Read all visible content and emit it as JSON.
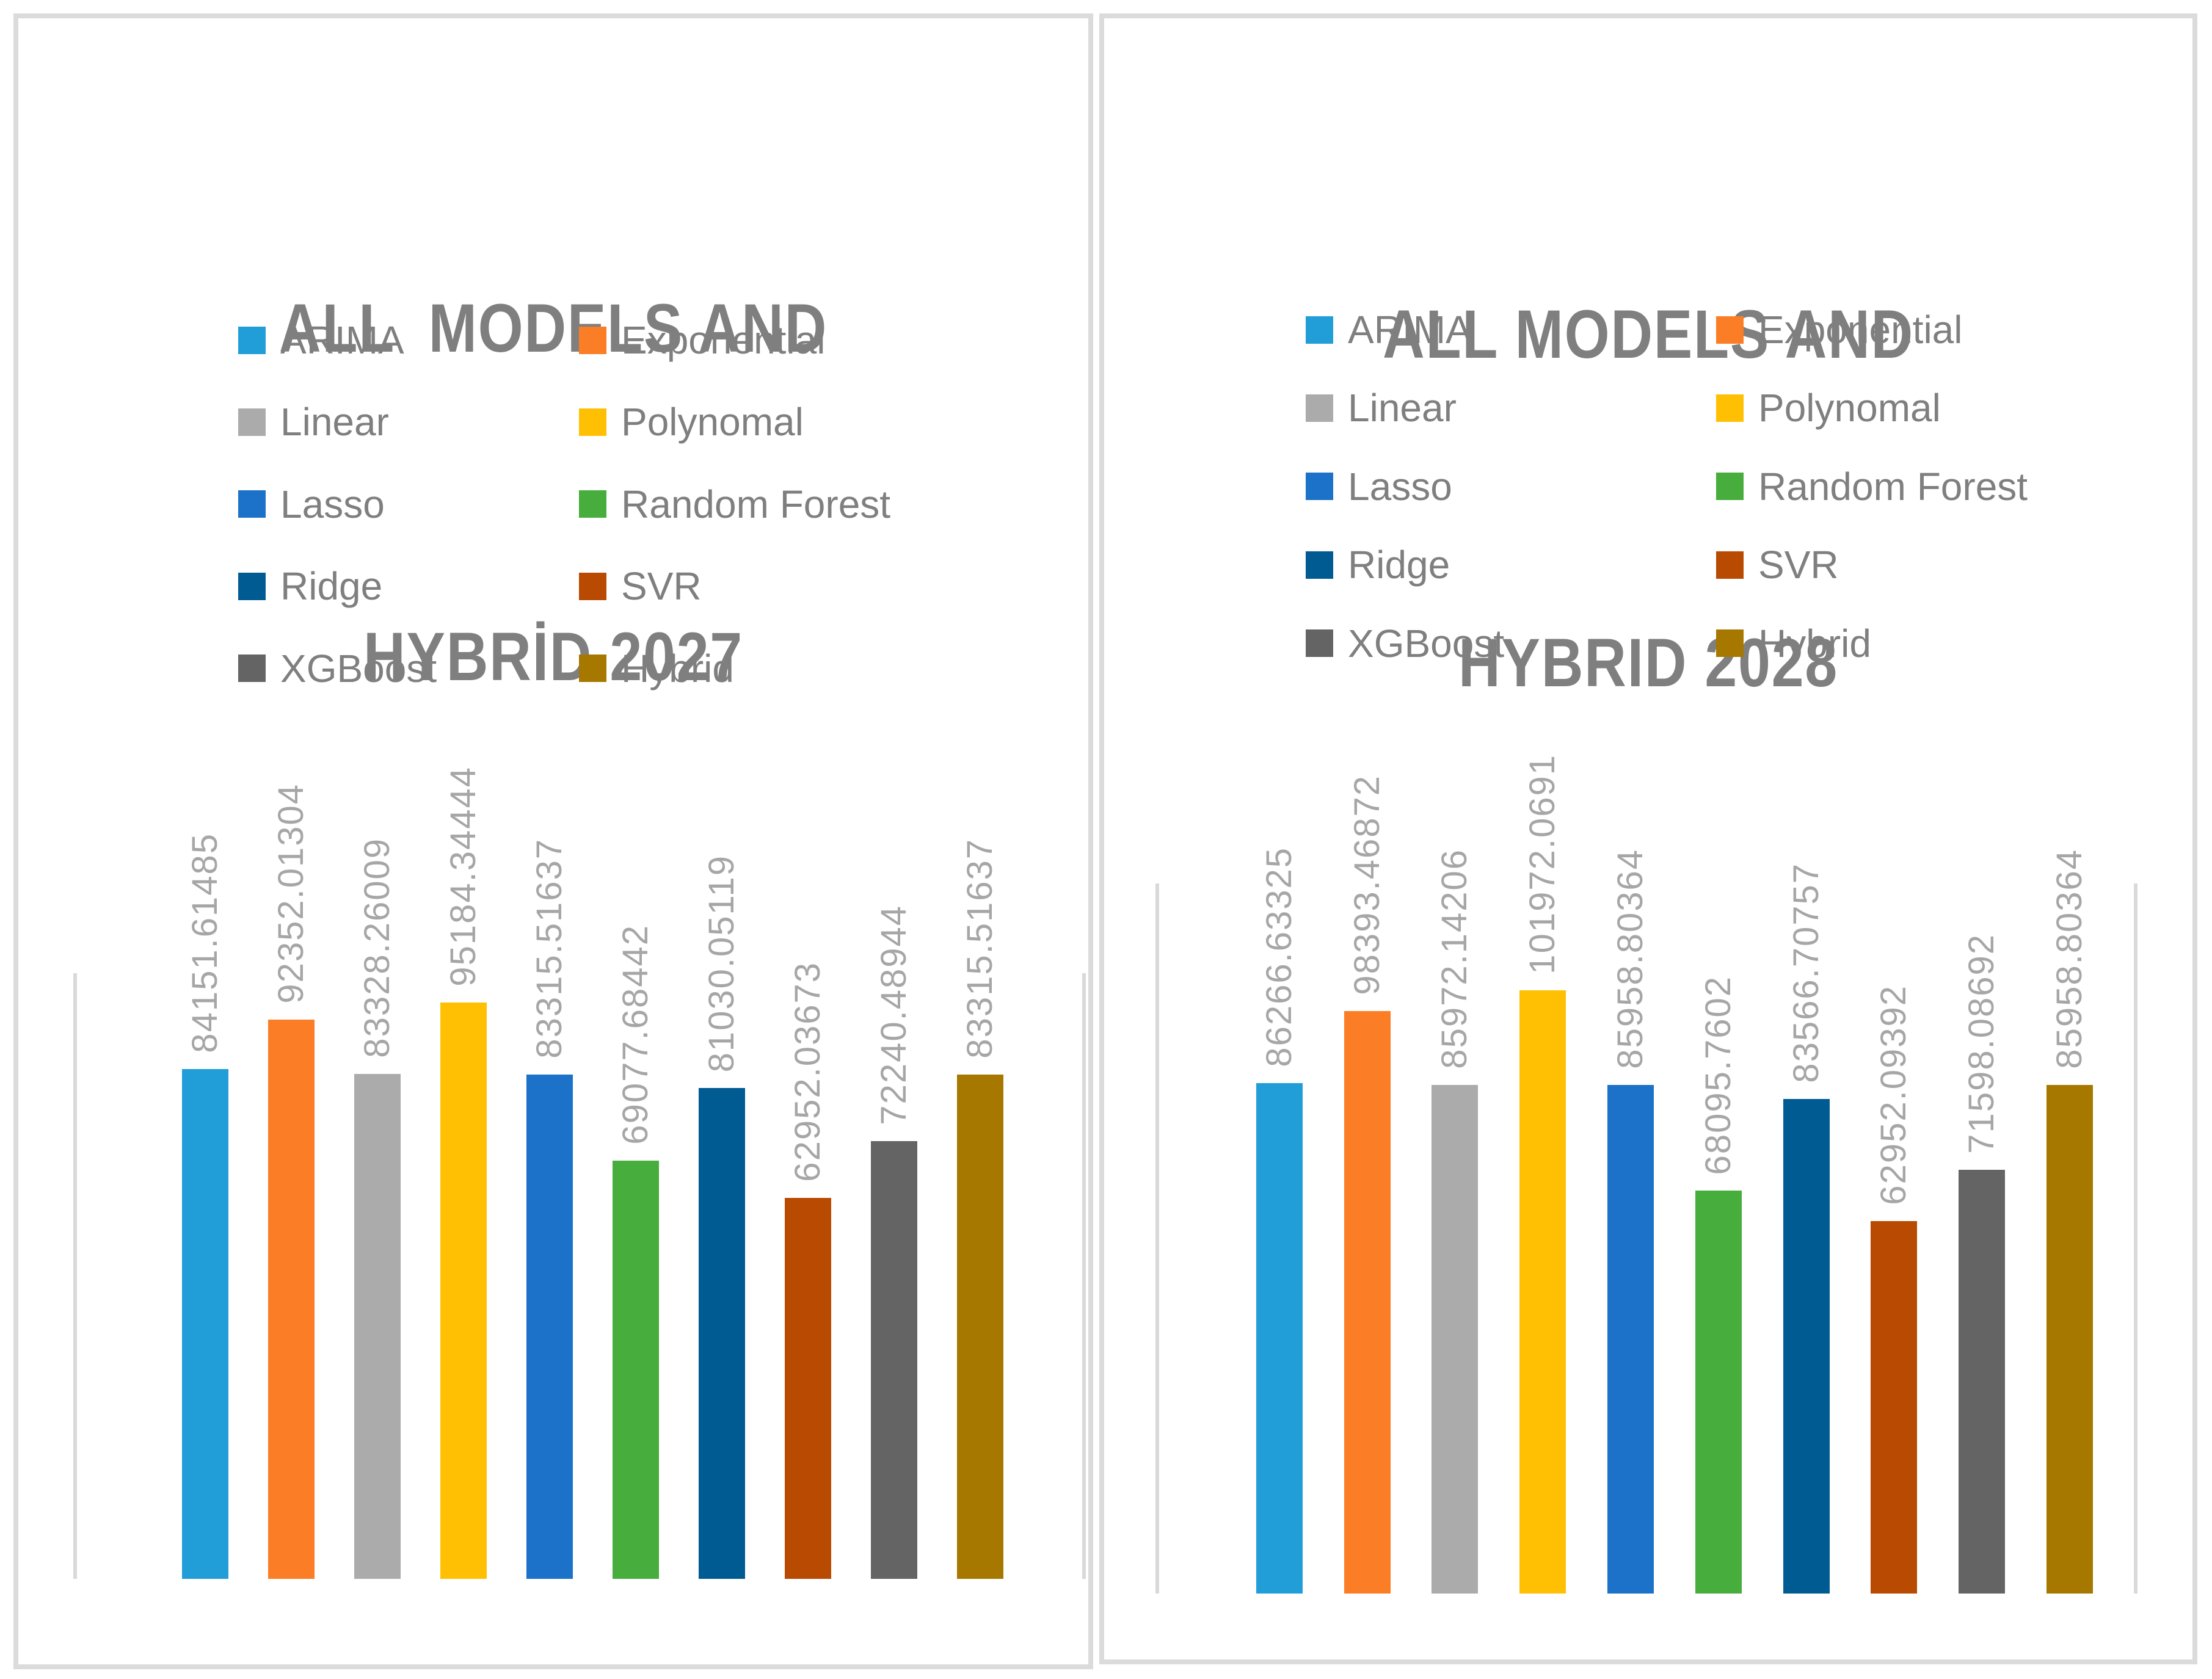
{
  "colors": {
    "panel_border": "#DBDBDB",
    "axis_line": "#D9D9D9",
    "title_text": "#7F7F7F",
    "legend_text": "#7F7F7F",
    "value_label_text": "#A6A6A6"
  },
  "chart_data": [
    {
      "type": "bar",
      "title": "ALL  MODELS AND HYBRİD 2027",
      "title_lines": [
        "ALL  MODELS AND",
        "HYBRİD 2027"
      ],
      "categories": [
        "ARIMA",
        "Exponential",
        "Linear",
        "Polynomal",
        "Lasso",
        "Random Forest",
        "Ridge",
        "SVR",
        "XGBoost",
        "Hybrid"
      ],
      "values": [
        84151.61485,
        92352.01304,
        83328.26009,
        95184.34444,
        83315.51637,
        69077.68442,
        81030.05119,
        62952.03673,
        72240.48944,
        83315.51637
      ],
      "data_labels": [
        "84151.61485",
        "92352.01304",
        "83328.26009",
        "95184.34444",
        "83315.51637",
        "69077.68442",
        "81030.05119",
        "62952.03673",
        "72240.48944",
        "83315.51637"
      ],
      "series_colors": [
        "#219DD8",
        "#FB7D25",
        "#ABABAB",
        "#FFC003",
        "#1B72C8",
        "#47AD3C",
        "#005B92",
        "#B94A02",
        "#646464",
        "#A67800"
      ],
      "ylim": [
        0,
        100000
      ],
      "grid": false,
      "legend_position": "top",
      "data_label_rotation": 90,
      "x_axis_labels_shown": false
    },
    {
      "type": "bar",
      "title": "ALL MODELS AND HYBRID 2028",
      "title_lines": [
        "ALL MODELS AND",
        "HYBRID 2028"
      ],
      "categories": [
        "ARIMA",
        "Exponential",
        "Linear",
        "Polynomal",
        "Lasso",
        "Random Forest",
        "Ridge",
        "SVR",
        "XGBoost",
        "Hybrid"
      ],
      "values": [
        86266.63325,
        98393.46872,
        85972.14206,
        101972.0691,
        85958.80364,
        68095.7602,
        83566.70757,
        62952.09392,
        71598.08692,
        85958.80364
      ],
      "data_labels": [
        "86266.63325",
        "98393.46872",
        "85972.14206",
        "101972.0691",
        "85958.80364",
        "68095.7602",
        "83566.70757",
        "62952.09392",
        "71598.08692",
        "85958.80364"
      ],
      "series_colors": [
        "#219DD8",
        "#FB7D25",
        "#ABABAB",
        "#FFC003",
        "#1B72C8",
        "#47AD3C",
        "#005B92",
        "#B94A02",
        "#646464",
        "#A67800"
      ],
      "ylim": [
        0,
        120000
      ],
      "grid": false,
      "legend_position": "top",
      "data_label_rotation": 90,
      "x_axis_labels_shown": false
    }
  ]
}
